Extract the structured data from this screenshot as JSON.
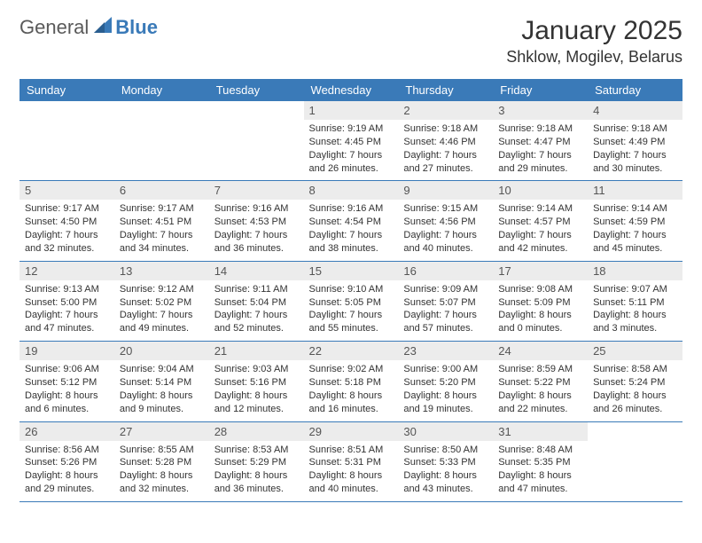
{
  "logo": {
    "general": "General",
    "blue": "Blue"
  },
  "title": "January 2025",
  "location": "Shklow, Mogilev, Belarus",
  "header_bg": "#3a7ab8",
  "header_fg": "#ffffff",
  "daynum_bg": "#ececec",
  "weekdays": [
    "Sunday",
    "Monday",
    "Tuesday",
    "Wednesday",
    "Thursday",
    "Friday",
    "Saturday"
  ],
  "weeks": [
    [
      null,
      null,
      null,
      {
        "n": "1",
        "sunrise": "9:19 AM",
        "sunset": "4:45 PM",
        "dl_h": 7,
        "dl_m": 26
      },
      {
        "n": "2",
        "sunrise": "9:18 AM",
        "sunset": "4:46 PM",
        "dl_h": 7,
        "dl_m": 27
      },
      {
        "n": "3",
        "sunrise": "9:18 AM",
        "sunset": "4:47 PM",
        "dl_h": 7,
        "dl_m": 29
      },
      {
        "n": "4",
        "sunrise": "9:18 AM",
        "sunset": "4:49 PM",
        "dl_h": 7,
        "dl_m": 30
      }
    ],
    [
      {
        "n": "5",
        "sunrise": "9:17 AM",
        "sunset": "4:50 PM",
        "dl_h": 7,
        "dl_m": 32
      },
      {
        "n": "6",
        "sunrise": "9:17 AM",
        "sunset": "4:51 PM",
        "dl_h": 7,
        "dl_m": 34
      },
      {
        "n": "7",
        "sunrise": "9:16 AM",
        "sunset": "4:53 PM",
        "dl_h": 7,
        "dl_m": 36
      },
      {
        "n": "8",
        "sunrise": "9:16 AM",
        "sunset": "4:54 PM",
        "dl_h": 7,
        "dl_m": 38
      },
      {
        "n": "9",
        "sunrise": "9:15 AM",
        "sunset": "4:56 PM",
        "dl_h": 7,
        "dl_m": 40
      },
      {
        "n": "10",
        "sunrise": "9:14 AM",
        "sunset": "4:57 PM",
        "dl_h": 7,
        "dl_m": 42
      },
      {
        "n": "11",
        "sunrise": "9:14 AM",
        "sunset": "4:59 PM",
        "dl_h": 7,
        "dl_m": 45
      }
    ],
    [
      {
        "n": "12",
        "sunrise": "9:13 AM",
        "sunset": "5:00 PM",
        "dl_h": 7,
        "dl_m": 47
      },
      {
        "n": "13",
        "sunrise": "9:12 AM",
        "sunset": "5:02 PM",
        "dl_h": 7,
        "dl_m": 49
      },
      {
        "n": "14",
        "sunrise": "9:11 AM",
        "sunset": "5:04 PM",
        "dl_h": 7,
        "dl_m": 52
      },
      {
        "n": "15",
        "sunrise": "9:10 AM",
        "sunset": "5:05 PM",
        "dl_h": 7,
        "dl_m": 55
      },
      {
        "n": "16",
        "sunrise": "9:09 AM",
        "sunset": "5:07 PM",
        "dl_h": 7,
        "dl_m": 57
      },
      {
        "n": "17",
        "sunrise": "9:08 AM",
        "sunset": "5:09 PM",
        "dl_h": 8,
        "dl_m": 0
      },
      {
        "n": "18",
        "sunrise": "9:07 AM",
        "sunset": "5:11 PM",
        "dl_h": 8,
        "dl_m": 3
      }
    ],
    [
      {
        "n": "19",
        "sunrise": "9:06 AM",
        "sunset": "5:12 PM",
        "dl_h": 8,
        "dl_m": 6
      },
      {
        "n": "20",
        "sunrise": "9:04 AM",
        "sunset": "5:14 PM",
        "dl_h": 8,
        "dl_m": 9
      },
      {
        "n": "21",
        "sunrise": "9:03 AM",
        "sunset": "5:16 PM",
        "dl_h": 8,
        "dl_m": 12
      },
      {
        "n": "22",
        "sunrise": "9:02 AM",
        "sunset": "5:18 PM",
        "dl_h": 8,
        "dl_m": 16
      },
      {
        "n": "23",
        "sunrise": "9:00 AM",
        "sunset": "5:20 PM",
        "dl_h": 8,
        "dl_m": 19
      },
      {
        "n": "24",
        "sunrise": "8:59 AM",
        "sunset": "5:22 PM",
        "dl_h": 8,
        "dl_m": 22
      },
      {
        "n": "25",
        "sunrise": "8:58 AM",
        "sunset": "5:24 PM",
        "dl_h": 8,
        "dl_m": 26
      }
    ],
    [
      {
        "n": "26",
        "sunrise": "8:56 AM",
        "sunset": "5:26 PM",
        "dl_h": 8,
        "dl_m": 29
      },
      {
        "n": "27",
        "sunrise": "8:55 AM",
        "sunset": "5:28 PM",
        "dl_h": 8,
        "dl_m": 32
      },
      {
        "n": "28",
        "sunrise": "8:53 AM",
        "sunset": "5:29 PM",
        "dl_h": 8,
        "dl_m": 36
      },
      {
        "n": "29",
        "sunrise": "8:51 AM",
        "sunset": "5:31 PM",
        "dl_h": 8,
        "dl_m": 40
      },
      {
        "n": "30",
        "sunrise": "8:50 AM",
        "sunset": "5:33 PM",
        "dl_h": 8,
        "dl_m": 43
      },
      {
        "n": "31",
        "sunrise": "8:48 AM",
        "sunset": "5:35 PM",
        "dl_h": 8,
        "dl_m": 47
      },
      null
    ]
  ]
}
